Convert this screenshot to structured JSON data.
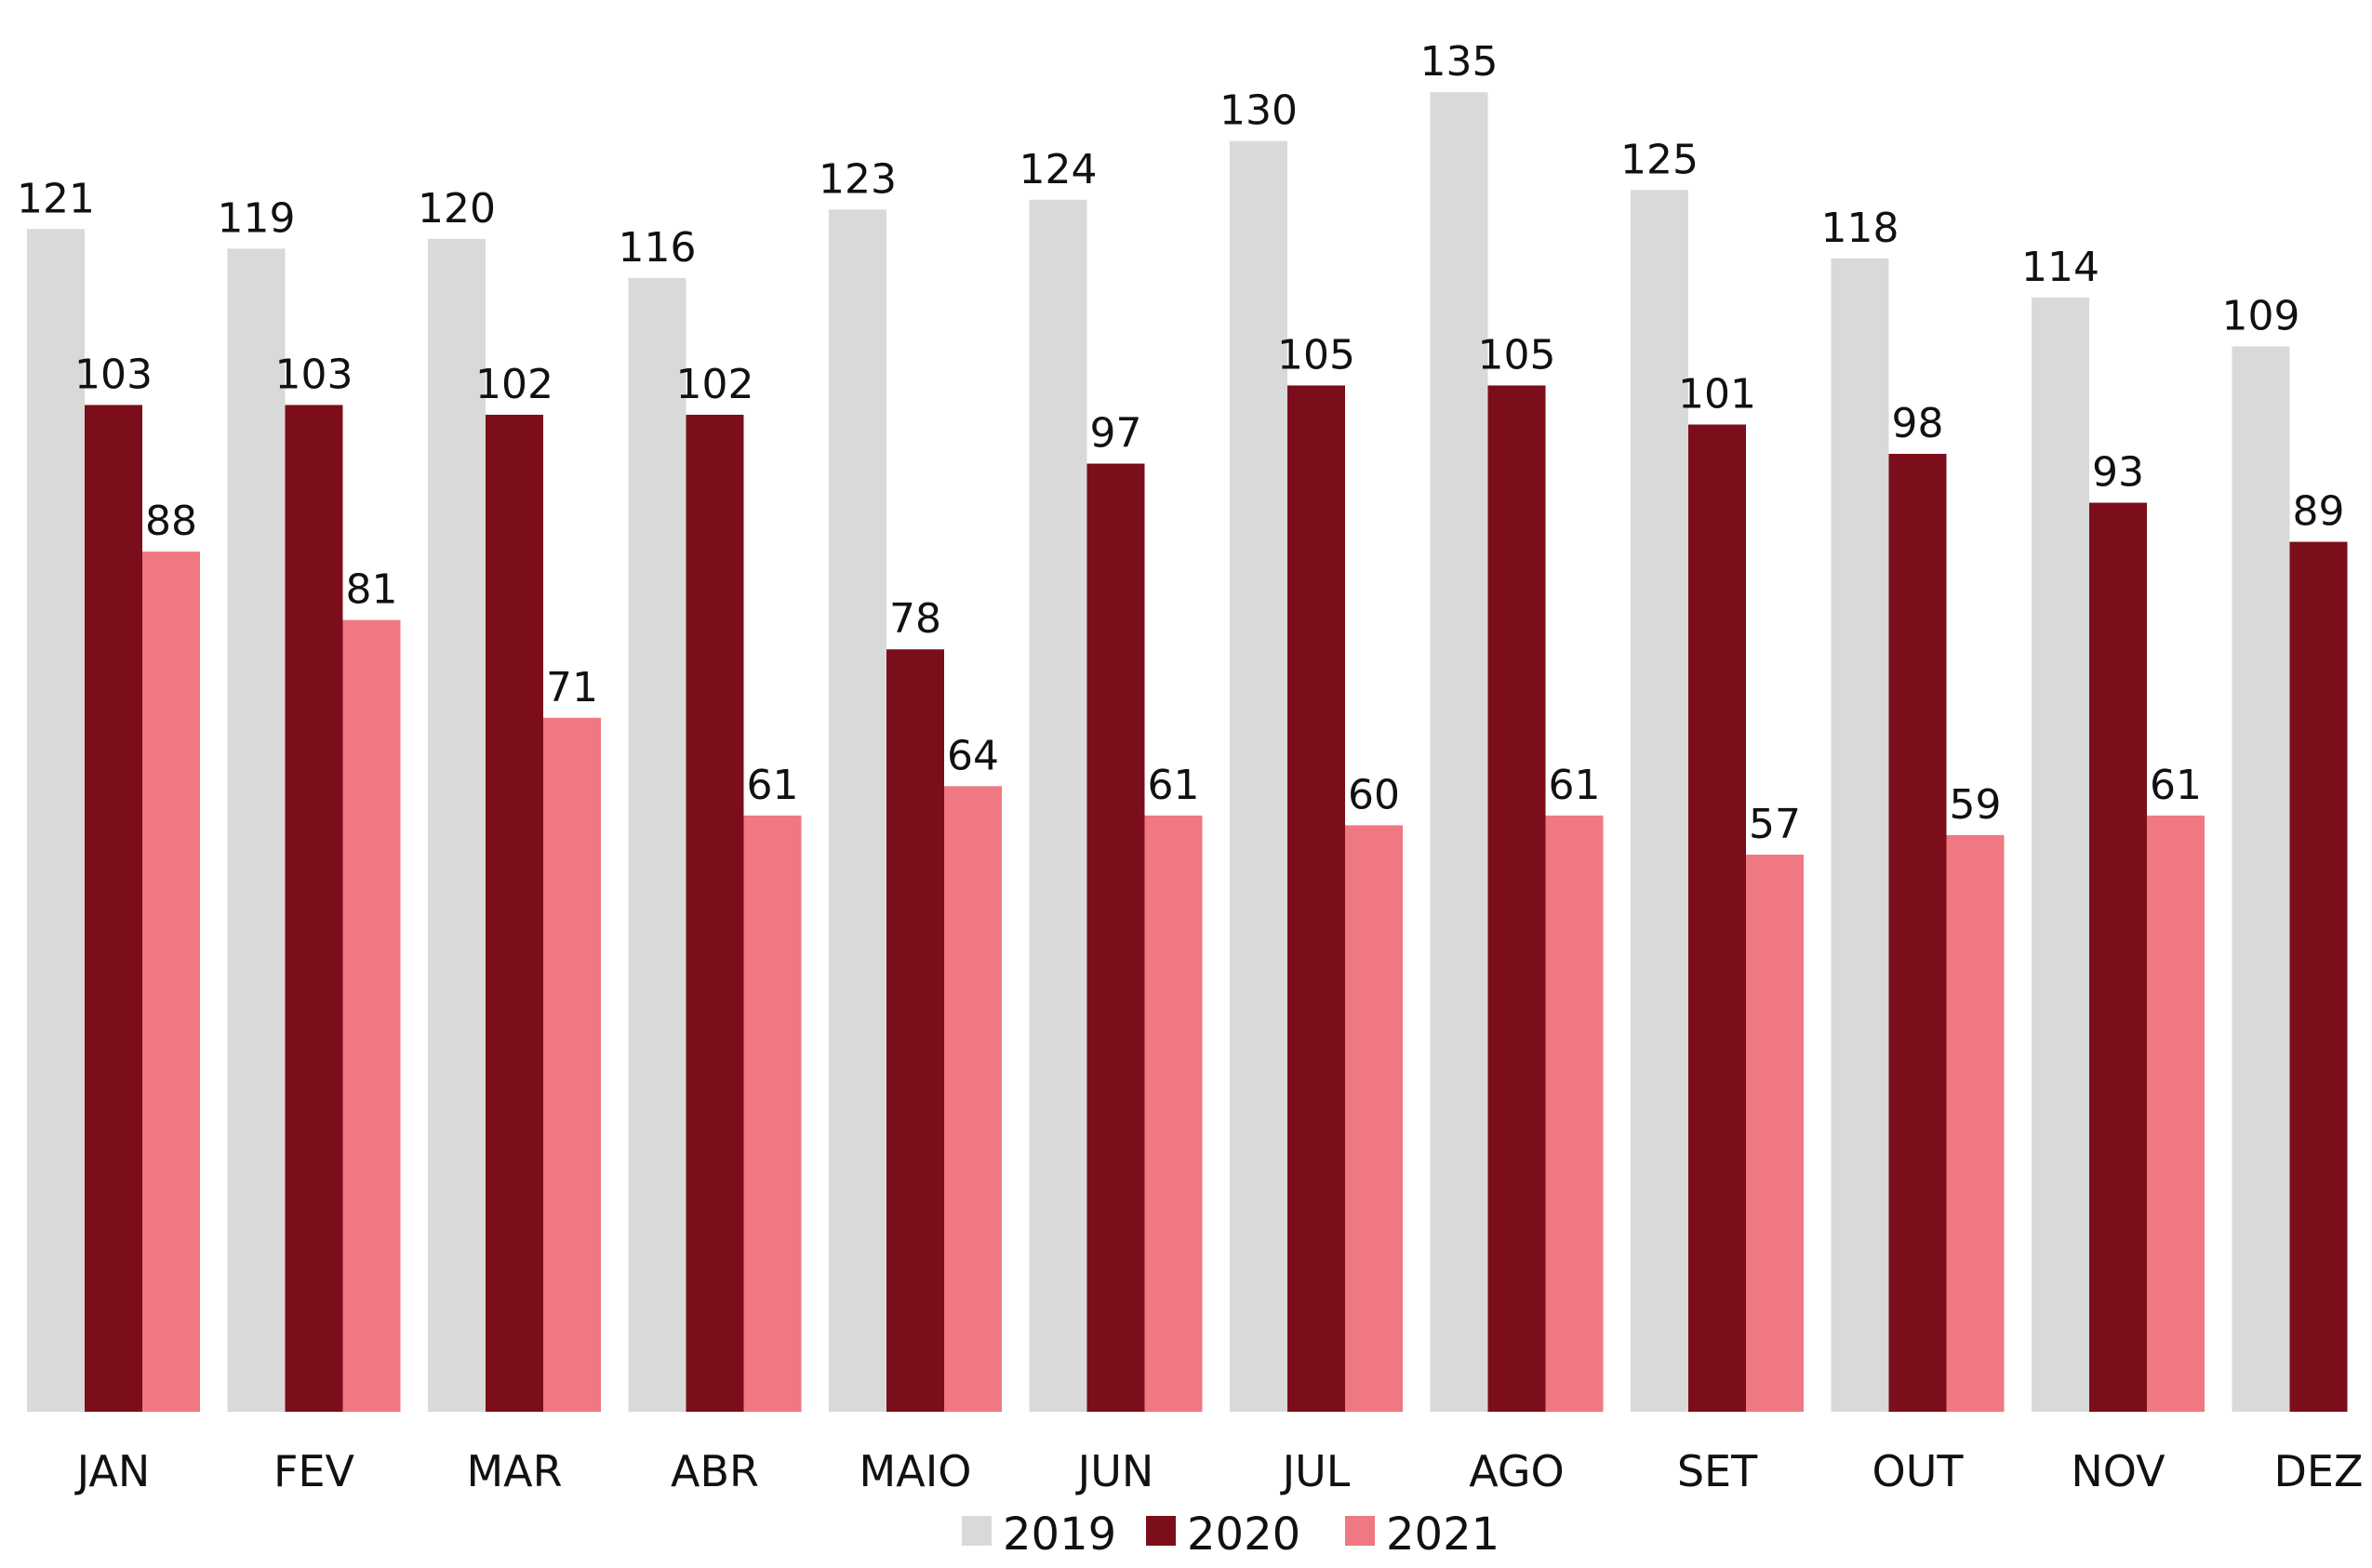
{
  "chart_data": {
    "type": "bar",
    "title": "",
    "xlabel": "",
    "ylabel": "",
    "ylim": [
      0,
      143
    ],
    "grid": false,
    "legend": "bottom-center",
    "categories": [
      "JAN",
      "FEV",
      "MAR",
      "ABR",
      "MAIO",
      "JUN",
      "JUL",
      "AGO",
      "SET",
      "OUT",
      "NOV",
      "DEZ"
    ],
    "series": [
      {
        "name": "2019",
        "color": "#d9d9d9",
        "values": [
          121,
          119,
          120,
          116,
          123,
          124,
          130,
          135,
          125,
          118,
          114,
          109
        ]
      },
      {
        "name": "2020",
        "color": "#7b0e1a",
        "values": [
          103,
          103,
          102,
          102,
          78,
          97,
          105,
          105,
          101,
          98,
          93,
          89
        ]
      },
      {
        "name": "2021",
        "color": "#f07882",
        "values": [
          88,
          81,
          71,
          61,
          64,
          61,
          60,
          61,
          57,
          59,
          61,
          null
        ]
      }
    ]
  }
}
